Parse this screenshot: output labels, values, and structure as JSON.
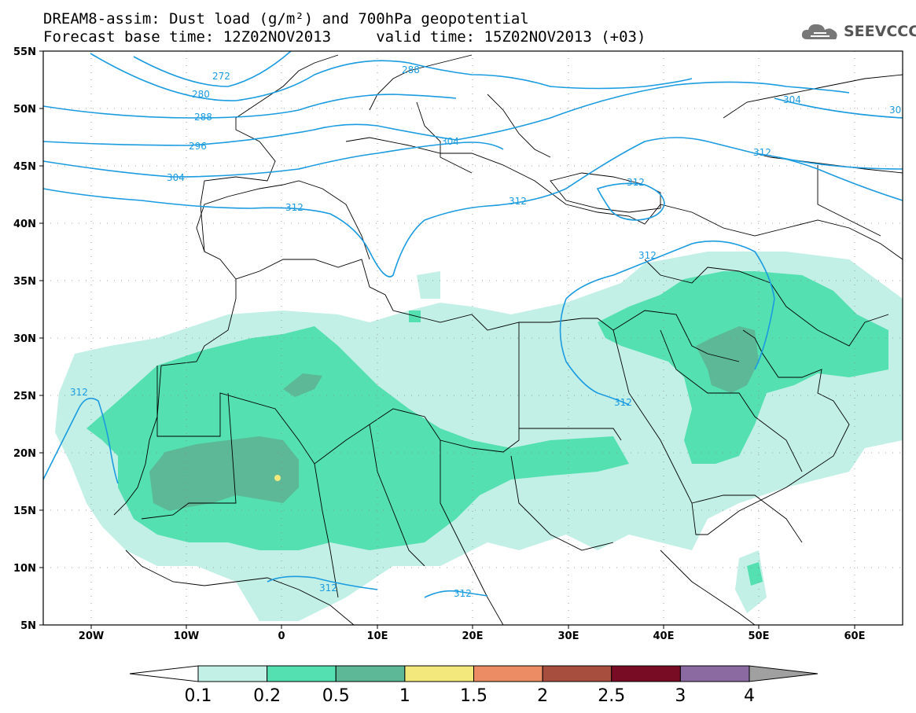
{
  "title": {
    "line1": "DREAM8-assim: Dust load (g/m²) and 700hPa geopotential",
    "line2": "Forecast base time: 12Z02NOV2013     valid time: 15Z02NOV2013 (+03)"
  },
  "logo": {
    "icon": "cloud-icon",
    "text": "SEEVCCC"
  },
  "map": {
    "lon_range": [
      -25,
      65
    ],
    "lat_range": [
      5,
      55
    ],
    "lat_ticks": [
      "55N",
      "50N",
      "45N",
      "40N",
      "35N",
      "30N",
      "25N",
      "20N",
      "15N",
      "10N",
      "5N"
    ],
    "lon_ticks": [
      "20W",
      "10W",
      "0",
      "10E",
      "20E",
      "30E",
      "40E",
      "50E",
      "60E"
    ],
    "contour_color": "#1b9be0",
    "contour_labels": [
      {
        "text": "272"
      },
      {
        "text": "280"
      },
      {
        "text": "288"
      },
      {
        "text": "296"
      },
      {
        "text": "304"
      },
      {
        "text": "312"
      },
      {
        "text": "288"
      },
      {
        "text": "304"
      },
      {
        "text": "312"
      },
      {
        "text": "312"
      },
      {
        "text": "304"
      },
      {
        "text": "30"
      },
      {
        "text": "312"
      },
      {
        "text": "312"
      },
      {
        "text": "312"
      },
      {
        "text": "312"
      },
      {
        "text": "312"
      },
      {
        "text": "312"
      }
    ]
  },
  "colorbar": {
    "levels": [
      "0.1",
      "0.2",
      "0.5",
      "1",
      "1.5",
      "2",
      "2.5",
      "3",
      "4"
    ],
    "colors": [
      "#c2f0e6",
      "#54e0b0",
      "#5cb896",
      "#f2e87c",
      "#eb8c64",
      "#a84e3e",
      "#780c24",
      "#8a6aa0"
    ],
    "over_color": "#a0a0a0",
    "under_color": "#ffffff"
  }
}
